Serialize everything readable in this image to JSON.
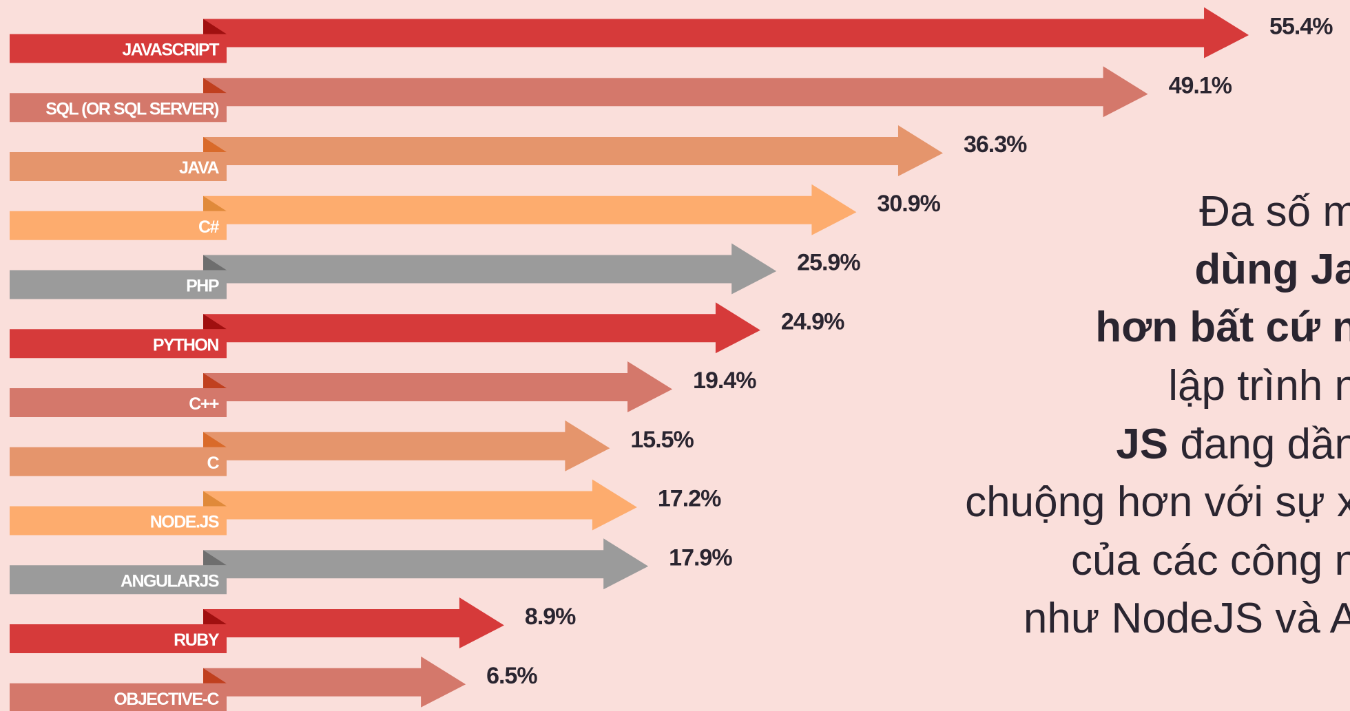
{
  "chart_data": {
    "type": "arrow-bar",
    "categories": [
      "JAVASCRIPT",
      "SQL (OR SQL SERVER)",
      "JAVA",
      "C#",
      "PHP",
      "PYTHON",
      "C++",
      "C",
      "NODE.JS",
      "ANGULARJS",
      "RUBY",
      "OBJECTIVE-C"
    ],
    "values": [
      55.4,
      49.1,
      36.3,
      30.9,
      25.9,
      24.9,
      19.4,
      15.5,
      17.2,
      17.9,
      8.9,
      6.5
    ],
    "value_labels": [
      "55.4%",
      "49.1%",
      "36.3%",
      "30.9%",
      "25.9%",
      "24.9%",
      "19.4%",
      "15.5%",
      "17.2%",
      "17.9%",
      "8.9%",
      "6.5%"
    ],
    "colors": [
      "#d63a3a",
      "#d4786b",
      "#e5956c",
      "#fdac6e",
      "#9b9b9b"
    ],
    "annotation": [
      [
        {
          "text": "Đa số m",
          "bold": false
        }
      ],
      [
        {
          "text": "dùng Ja",
          "bold": true
        }
      ],
      [
        {
          "text": "hơn bất cứ n",
          "bold": true
        }
      ],
      [
        {
          "text": "lập trình n",
          "bold": false
        }
      ],
      [
        {
          "text": "JS",
          "bold": true
        },
        {
          "text": " đang dần",
          "bold": false
        }
      ],
      [
        {
          "text": "chuộng hơn với sự x",
          "bold": false
        }
      ],
      [
        {
          "text": "của các công n",
          "bold": false
        }
      ],
      [
        {
          "text": "như NodeJS và A",
          "bold": false
        }
      ]
    ]
  }
}
